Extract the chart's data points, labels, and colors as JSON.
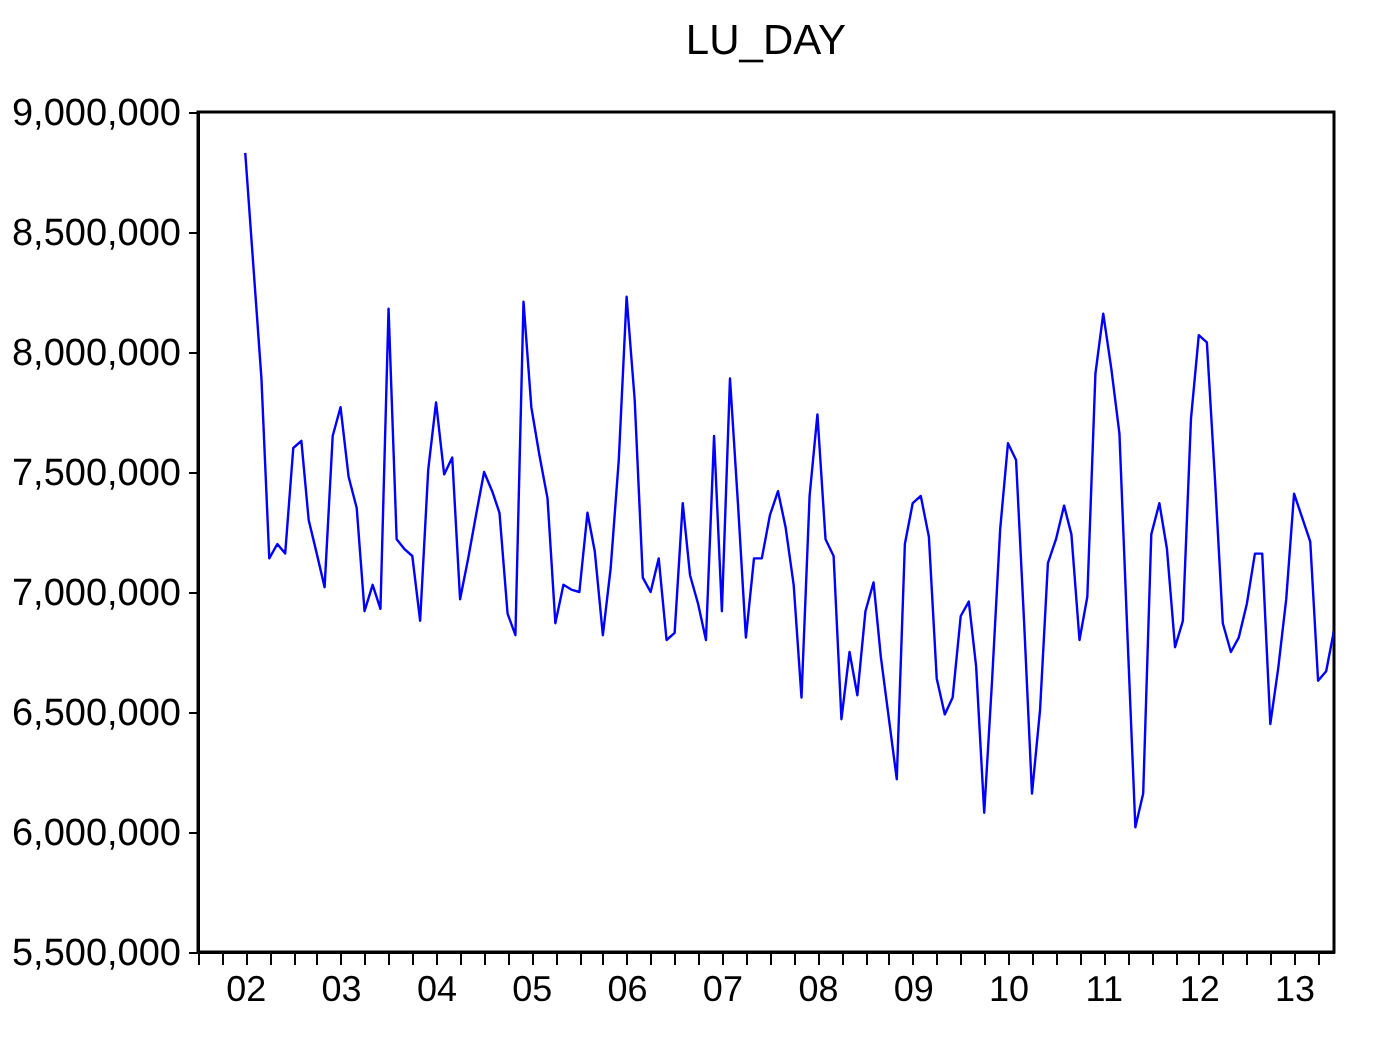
{
  "chart_data": {
    "type": "line",
    "title": "LU_DAY",
    "x": [
      "2002-07",
      "2002-08",
      "2002-09",
      "2002-10",
      "2002-11",
      "2002-12",
      "2003-01",
      "2003-02",
      "2003-03",
      "2003-04",
      "2003-05",
      "2003-06",
      "2003-07",
      "2003-08",
      "2003-09",
      "2003-10",
      "2003-11",
      "2003-12",
      "2004-01",
      "2004-02",
      "2004-03",
      "2004-04",
      "2004-05",
      "2004-06",
      "2004-07",
      "2004-08",
      "2004-09",
      "2004-10",
      "2004-11",
      "2004-12",
      "2005-01",
      "2005-02",
      "2005-03",
      "2005-04",
      "2005-05",
      "2005-06",
      "2005-07",
      "2005-08",
      "2005-09",
      "2005-10",
      "2005-11",
      "2005-12",
      "2006-01",
      "2006-02",
      "2006-03",
      "2006-04",
      "2006-05",
      "2006-06",
      "2006-07",
      "2006-08",
      "2006-09",
      "2006-10",
      "2006-11",
      "2006-12",
      "2007-01",
      "2007-02",
      "2007-03",
      "2007-04",
      "2007-05",
      "2007-06",
      "2007-07",
      "2007-08",
      "2007-09",
      "2007-10",
      "2007-11",
      "2007-12",
      "2008-01",
      "2008-02",
      "2008-03",
      "2008-04",
      "2008-05",
      "2008-06",
      "2008-07",
      "2008-08",
      "2008-09",
      "2008-10",
      "2008-11",
      "2008-12",
      "2009-01",
      "2009-02",
      "2009-03",
      "2009-04",
      "2009-05",
      "2009-06",
      "2009-07",
      "2009-08",
      "2009-09",
      "2009-10",
      "2009-11",
      "2009-12",
      "2010-01",
      "2010-02",
      "2010-03",
      "2010-04",
      "2010-05",
      "2010-06",
      "2010-07",
      "2010-08",
      "2010-09",
      "2010-10",
      "2010-11",
      "2010-12",
      "2011-01",
      "2011-02",
      "2011-03",
      "2011-04",
      "2011-05",
      "2011-06",
      "2011-07",
      "2011-08",
      "2011-09",
      "2011-10",
      "2011-11",
      "2011-12",
      "2012-01",
      "2012-02",
      "2012-03",
      "2012-04",
      "2012-05",
      "2012-06",
      "2012-07",
      "2012-08",
      "2012-09",
      "2012-10",
      "2012-11",
      "2012-12",
      "2013-01",
      "2013-02",
      "2013-03",
      "2013-04",
      "2013-05",
      "2013-06",
      "2013-07",
      "2013-08",
      "2013-09",
      "2013-10",
      "2013-11",
      "2013-12"
    ],
    "series": [
      {
        "color": "#0000ff",
        "values": [
          8830000,
          8360000,
          7890000,
          7140000,
          7200000,
          7160000,
          7600000,
          7630000,
          7300000,
          7160000,
          7020000,
          7650000,
          7770000,
          7480000,
          7350000,
          6920000,
          7030000,
          6930000,
          8180000,
          7220000,
          7180000,
          7150000,
          6880000,
          7510000,
          7790000,
          7490000,
          7560000,
          6970000,
          7140000,
          7320000,
          7500000,
          7420000,
          7330000,
          6910000,
          6820000,
          8210000,
          7770000,
          7570000,
          7390000,
          6870000,
          7030000,
          7010000,
          7000000,
          7330000,
          7170000,
          6820000,
          7100000,
          7550000,
          8230000,
          7800000,
          7060000,
          7000000,
          7140000,
          6800000,
          6830000,
          7370000,
          7070000,
          6950000,
          6800000,
          7650000,
          6920000,
          7890000,
          7360000,
          6810000,
          7140000,
          7140000,
          7320000,
          7420000,
          7270000,
          7030000,
          6560000,
          7400000,
          7740000,
          7220000,
          7150000,
          6470000,
          6750000,
          6570000,
          6920000,
          7040000,
          6730000,
          6470000,
          6220000,
          7200000,
          7370000,
          7400000,
          7230000,
          6640000,
          6490000,
          6560000,
          6900000,
          6960000,
          6690000,
          6080000,
          6630000,
          7260000,
          7620000,
          7550000,
          6870000,
          6160000,
          6510000,
          7120000,
          7220000,
          7360000,
          7240000,
          6800000,
          6980000,
          7910000,
          8160000,
          7930000,
          7660000,
          6840000,
          6020000,
          6160000,
          7240000,
          7370000,
          7180000,
          6770000,
          6880000,
          7720000,
          8070000,
          8040000,
          7470000,
          6870000,
          6750000,
          6810000,
          6950000,
          7160000,
          7160000,
          6450000,
          6680000,
          6970000,
          7410000,
          7310000,
          7210000,
          6630000,
          6670000,
          6840000
        ]
      }
    ],
    "xlim": [
      "2002-01",
      "2013-12"
    ],
    "xticks": [
      {
        "value": "2002-01",
        "label": null
      },
      {
        "value": "2002-04",
        "label": null
      },
      {
        "value": "2002-07",
        "label": "02"
      },
      {
        "value": "2002-10",
        "label": null
      },
      {
        "value": "2003-01",
        "label": null
      },
      {
        "value": "2003-04",
        "label": null
      },
      {
        "value": "2003-07",
        "label": "03"
      },
      {
        "value": "2003-10",
        "label": null
      },
      {
        "value": "2004-01",
        "label": null
      },
      {
        "value": "2004-04",
        "label": null
      },
      {
        "value": "2004-07",
        "label": "04"
      },
      {
        "value": "2004-10",
        "label": null
      },
      {
        "value": "2005-01",
        "label": null
      },
      {
        "value": "2005-04",
        "label": null
      },
      {
        "value": "2005-07",
        "label": "05"
      },
      {
        "value": "2005-10",
        "label": null
      },
      {
        "value": "2006-01",
        "label": null
      },
      {
        "value": "2006-04",
        "label": null
      },
      {
        "value": "2006-07",
        "label": "06"
      },
      {
        "value": "2006-10",
        "label": null
      },
      {
        "value": "2007-01",
        "label": null
      },
      {
        "value": "2007-04",
        "label": null
      },
      {
        "value": "2007-07",
        "label": "07"
      },
      {
        "value": "2007-10",
        "label": null
      },
      {
        "value": "2008-01",
        "label": null
      },
      {
        "value": "2008-04",
        "label": null
      },
      {
        "value": "2008-07",
        "label": "08"
      },
      {
        "value": "2008-10",
        "label": null
      },
      {
        "value": "2009-01",
        "label": null
      },
      {
        "value": "2009-04",
        "label": null
      },
      {
        "value": "2009-07",
        "label": "09"
      },
      {
        "value": "2009-10",
        "label": null
      },
      {
        "value": "2010-01",
        "label": null
      },
      {
        "value": "2010-04",
        "label": null
      },
      {
        "value": "2010-07",
        "label": "10"
      },
      {
        "value": "2010-10",
        "label": null
      },
      {
        "value": "2011-01",
        "label": null
      },
      {
        "value": "2011-04",
        "label": null
      },
      {
        "value": "2011-07",
        "label": "11"
      },
      {
        "value": "2011-10",
        "label": null
      },
      {
        "value": "2012-01",
        "label": null
      },
      {
        "value": "2012-04",
        "label": null
      },
      {
        "value": "2012-07",
        "label": "12"
      },
      {
        "value": "2012-10",
        "label": null
      },
      {
        "value": "2013-01",
        "label": null
      },
      {
        "value": "2013-04",
        "label": null
      },
      {
        "value": "2013-07",
        "label": "13"
      },
      {
        "value": "2013-10",
        "label": null
      }
    ],
    "ylim": [
      5500000,
      9000000
    ],
    "yticks": [
      {
        "value": 5500000,
        "label": "5,500,000"
      },
      {
        "value": 6000000,
        "label": "6,000,000"
      },
      {
        "value": 6500000,
        "label": "6,500,000"
      },
      {
        "value": 7000000,
        "label": "7,000,000"
      },
      {
        "value": 7500000,
        "label": "7,500,000"
      },
      {
        "value": 8000000,
        "label": "8,000,000"
      },
      {
        "value": 8500000,
        "label": "8,500,000"
      },
      {
        "value": 9000000,
        "label": "9,000,000"
      }
    ],
    "grid": false,
    "legend": false,
    "line_style": "solid",
    "marker": "none"
  }
}
